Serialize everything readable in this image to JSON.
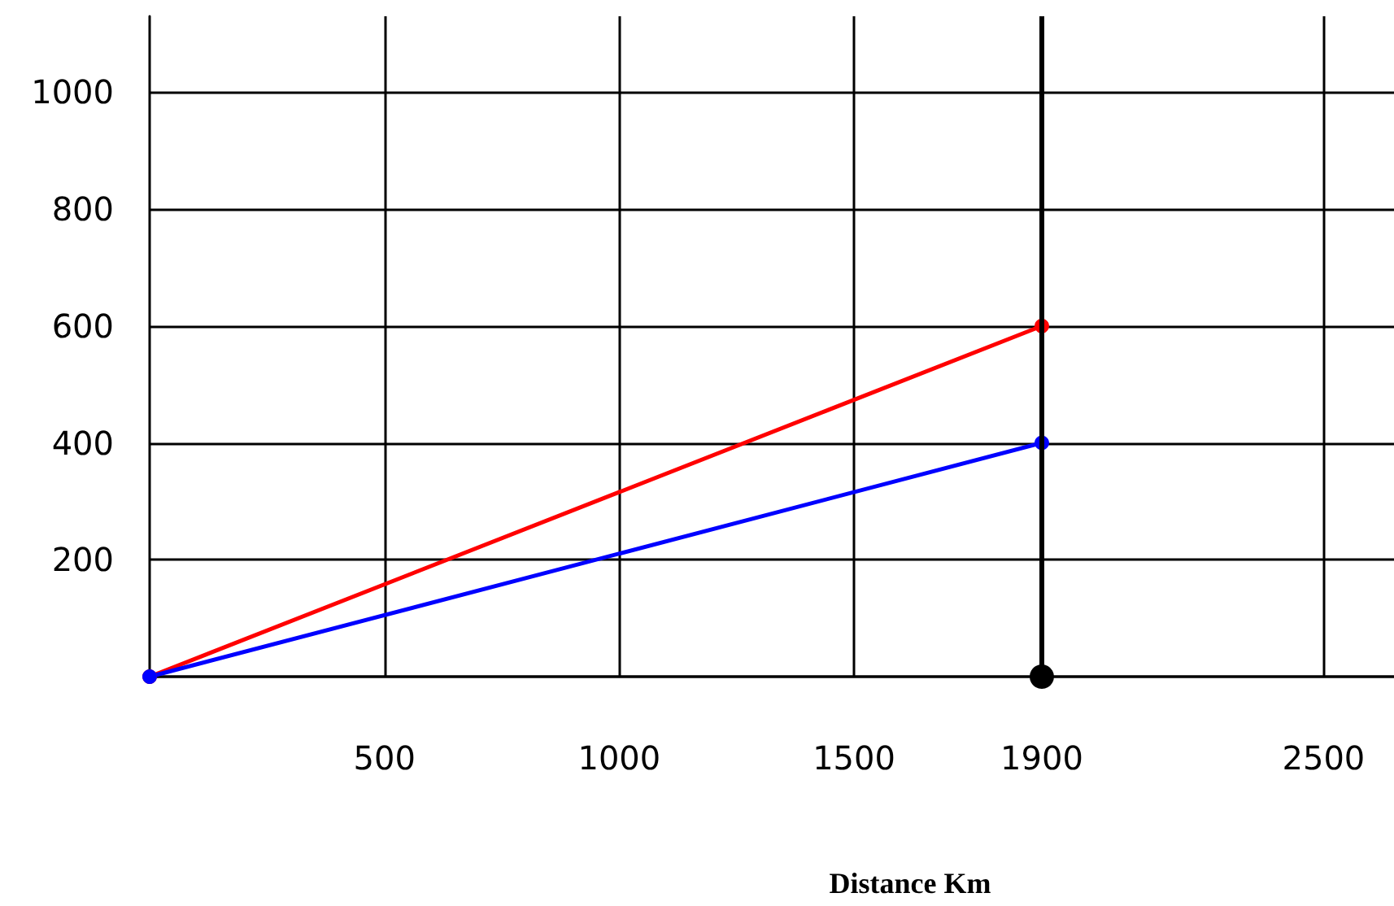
{
  "chart_data": {
    "type": "line",
    "xlabel": "Distance Km",
    "x": [
      0,
      1900
    ],
    "series": [
      {
        "color": "#ff0000",
        "values": [
          0,
          600
        ]
      },
      {
        "color": "#0000ff",
        "values": [
          0,
          400
        ]
      },
      {
        "type": "scatter",
        "color": "#000000",
        "x": [
          1900
        ],
        "values": [
          0
        ]
      }
    ],
    "xlim": [
      0,
      2650
    ],
    "ylim": [
      0,
      1130
    ],
    "xticks": [
      500,
      1000,
      1500,
      1900,
      2500
    ],
    "yticks": [
      {
        "value": 0,
        "label": null
      },
      200,
      400,
      600,
      800,
      1000
    ],
    "ref_lines": [
      {
        "axis": "x",
        "value": 1900,
        "color": "#000000"
      }
    ],
    "grid": true,
    "marker": "circle",
    "line_style": "solid"
  }
}
